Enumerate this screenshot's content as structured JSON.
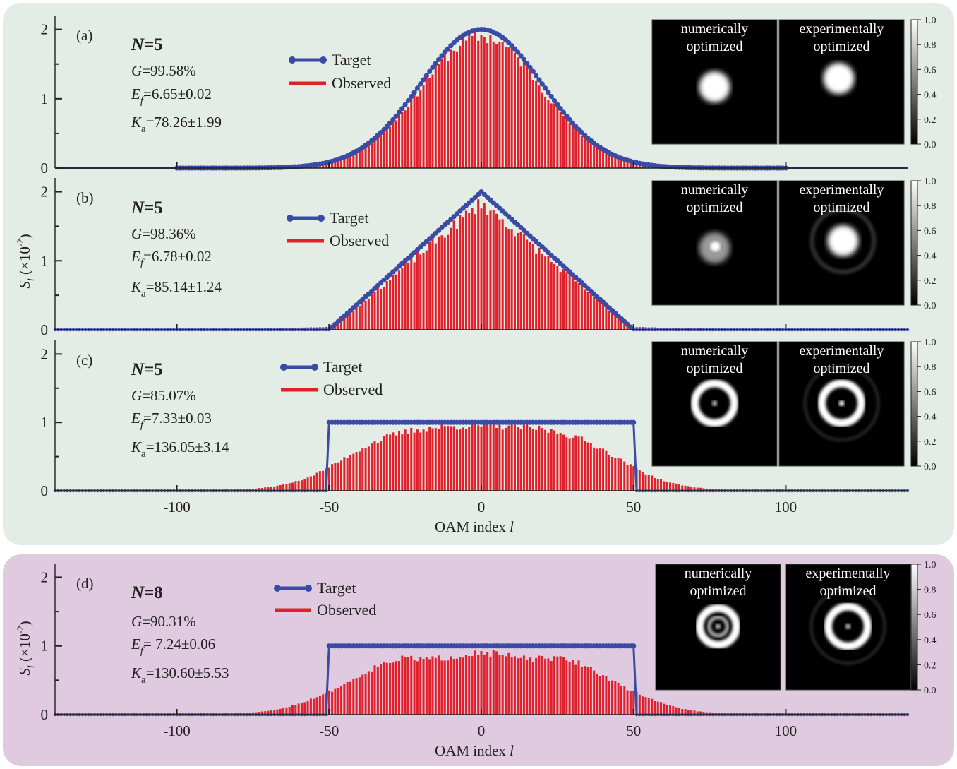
{
  "chart_data": [
    {
      "id": "a",
      "type": "bar",
      "panel_tag": "(a)",
      "N_prefix": "N",
      "N_value": "=5",
      "metrics": {
        "G": "=99.58%",
        "Ef": "=6.65±0.02",
        "Ka": "=78.26±1.99"
      },
      "target_shape": "gaussian",
      "target_params": {
        "peak": 2.0,
        "center": 0,
        "sigma": 20
      },
      "observed_noise_seed": 11,
      "observed_params": {
        "scale": 0.95,
        "background": 0.0
      },
      "legend": [
        "Target",
        "Observed"
      ],
      "insets": [
        {
          "title_line1": "numerically",
          "title_line2": "optimized",
          "pattern": "spot"
        },
        {
          "title_line1": "experimentally",
          "title_line2": "optimized",
          "pattern": "spot-offset"
        }
      ],
      "colorbar_ticks": [
        "1.0",
        "0.8",
        "0.6",
        "0.4",
        "0.2",
        "0.0"
      ],
      "ylim": [
        0,
        2.2
      ],
      "yticks": [
        "0",
        "1",
        "2"
      ],
      "xlim": [
        -140,
        140
      ],
      "show_xticklabels": false,
      "xlabel": ""
    },
    {
      "id": "b",
      "type": "bar",
      "panel_tag": "(b)",
      "N_prefix": "N",
      "N_value": "=5",
      "metrics": {
        "G": "=98.36%",
        "Ef": "=6.78±0.02",
        "Ka": "=85.14±1.24"
      },
      "target_shape": "triangle",
      "target_params": {
        "peak": 2.0,
        "half_width": 50
      },
      "observed_noise_seed": 23,
      "observed_params": {
        "scale": 0.92,
        "background": 0.05
      },
      "legend": [
        "Target",
        "Observed"
      ],
      "insets": [
        {
          "title_line1": "numerically",
          "title_line2": "optimized",
          "pattern": "spot-dim"
        },
        {
          "title_line1": "experimentally",
          "title_line2": "optimized",
          "pattern": "spot-ring"
        }
      ],
      "colorbar_ticks": [
        "1.0",
        "0.8",
        "0.6",
        "0.4",
        "0.2",
        "0.0"
      ],
      "ylim": [
        0,
        2.2
      ],
      "yticks": [
        "0",
        "1",
        "2"
      ],
      "xlim": [
        -140,
        140
      ],
      "show_xticklabels": false,
      "xlabel": ""
    },
    {
      "id": "c",
      "type": "bar",
      "panel_tag": "(c)",
      "N_prefix": "N",
      "N_value": "=5",
      "metrics": {
        "G": "=85.07%",
        "Ef": "=7.33±0.03",
        "Ka": "=136.05±3.14"
      },
      "target_shape": "rect",
      "target_params": {
        "height": 1.0,
        "half_width": 50
      },
      "observed_noise_seed": 37,
      "observed_params": {
        "scale": 0.96,
        "background": 0.0
      },
      "legend": [
        "Target",
        "Observed"
      ],
      "insets": [
        {
          "title_line1": "numerically",
          "title_line2": "optimized",
          "pattern": "ring"
        },
        {
          "title_line1": "experimentally",
          "title_line2": "optimized",
          "pattern": "ring-exp"
        }
      ],
      "colorbar_ticks": [
        "1.0",
        "0.8",
        "0.6",
        "0.4",
        "0.2",
        "0.0"
      ],
      "ylim": [
        0,
        2.2
      ],
      "yticks": [
        "0",
        "1",
        "2"
      ],
      "xlim": [
        -140,
        140
      ],
      "show_xticklabels": true,
      "xticklabels": [
        "-100",
        "-50",
        "0",
        "50",
        "100"
      ],
      "xlabel": "OAM index "
    },
    {
      "id": "d",
      "type": "bar",
      "panel_tag": "(d)",
      "N_prefix": "N",
      "N_value": "=8",
      "metrics": {
        "G": "=90.31%",
        "Ef": "= 7.24±0.06",
        "Ka": "=130.60±5.53"
      },
      "target_shape": "rect",
      "target_params": {
        "height": 1.0,
        "half_width": 50
      },
      "observed_noise_seed": 51,
      "observed_params": {
        "scale": 0.93,
        "background": 0.0
      },
      "legend": [
        "Target",
        "Observed"
      ],
      "insets": [
        {
          "title_line1": "numerically",
          "title_line2": "optimized",
          "pattern": "double-ring"
        },
        {
          "title_line1": "experimentally",
          "title_line2": "optimized",
          "pattern": "ring-exp2"
        }
      ],
      "colorbar_ticks": [
        "1.0",
        "0.8",
        "0.6",
        "0.4",
        "0.2",
        "0.0"
      ],
      "ylim": [
        0,
        2.2
      ],
      "yticks": [
        "0",
        "1",
        "2"
      ],
      "xlim": [
        -140,
        140
      ],
      "show_xticklabels": true,
      "xticklabels": [
        "-100",
        "-50",
        "0",
        "50",
        "100"
      ],
      "xlabel": "OAM index "
    }
  ],
  "shared": {
    "ylabel_main": "S",
    "ylabel_sub": "l",
    "ylabel_rest": " (×10",
    "ylabel_exp": "-2",
    "ylabel_close": ")",
    "xlabel_var": "l"
  },
  "colors": {
    "group1_bg": "#e4ece6",
    "group2_bg": "#dfcae0",
    "target": "#3a4ba5",
    "observed": "#e0202a"
  }
}
